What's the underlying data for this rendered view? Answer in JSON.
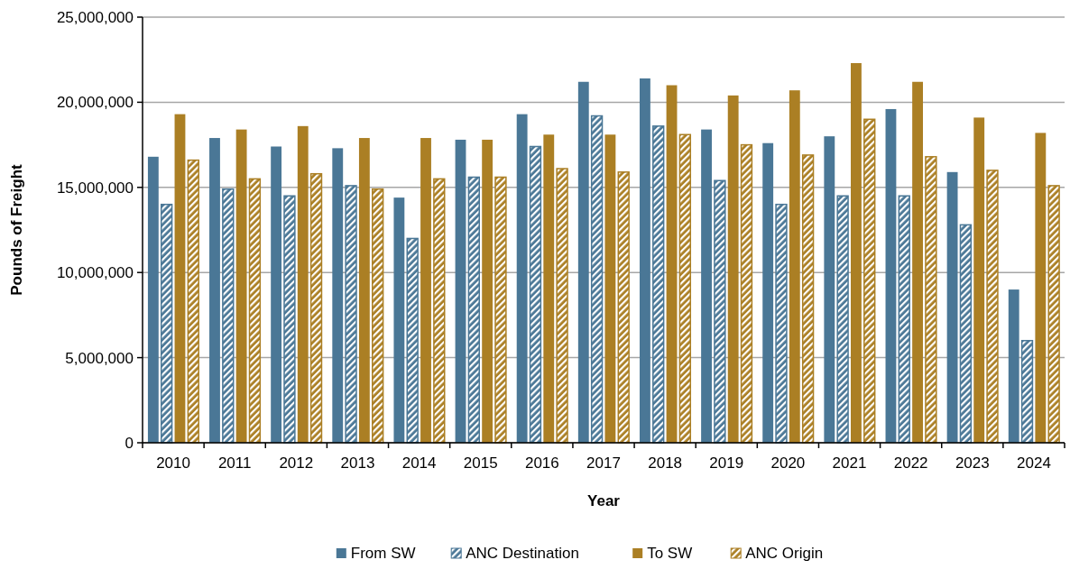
{
  "chart_data": {
    "type": "bar",
    "xlabel": "Year",
    "ylabel": "Pounds of Freight",
    "categories": [
      "2010",
      "2011",
      "2012",
      "2013",
      "2014",
      "2015",
      "2016",
      "2017",
      "2018",
      "2019",
      "2020",
      "2021",
      "2022",
      "2023",
      "2024"
    ],
    "series": [
      {
        "name": "From SW",
        "color": "#4a7796",
        "values": [
          16800000,
          17900000,
          17400000,
          17300000,
          14400000,
          17800000,
          19300000,
          21200000,
          21400000,
          18400000,
          17600000,
          18000000,
          19600000,
          15900000,
          9000000
        ]
      },
      {
        "name": "ANC Destination",
        "color": "#4a7796",
        "values": [
          14000000,
          14900000,
          14500000,
          15100000,
          12000000,
          15600000,
          17400000,
          19200000,
          18600000,
          15400000,
          14000000,
          14500000,
          14500000,
          12800000,
          6000000
        ]
      },
      {
        "name": "To SW",
        "color": "#ab7f24",
        "values": [
          19300000,
          18400000,
          18600000,
          17900000,
          17900000,
          17800000,
          18100000,
          18100000,
          21000000,
          20400000,
          20700000,
          22300000,
          21200000,
          19100000,
          18200000
        ]
      },
      {
        "name": "ANC Origin",
        "color": "#ab7f24",
        "values": [
          16600000,
          15500000,
          15800000,
          14900000,
          15500000,
          15600000,
          16100000,
          15900000,
          18100000,
          17500000,
          16900000,
          19000000,
          16800000,
          16000000,
          15100000
        ]
      }
    ],
    "ylim": [
      0,
      25000000
    ],
    "yticks": [
      {
        "value": 0,
        "label": "0"
      },
      {
        "value": 5000000,
        "label": "5,000,000"
      },
      {
        "value": 10000000,
        "label": "10,000,000"
      },
      {
        "value": 15000000,
        "label": "15,000,000"
      },
      {
        "value": 20000000,
        "label": "20,000,000"
      },
      {
        "value": 25000000,
        "label": "25,000,000"
      }
    ],
    "grid": "y",
    "legend": "bottom"
  }
}
